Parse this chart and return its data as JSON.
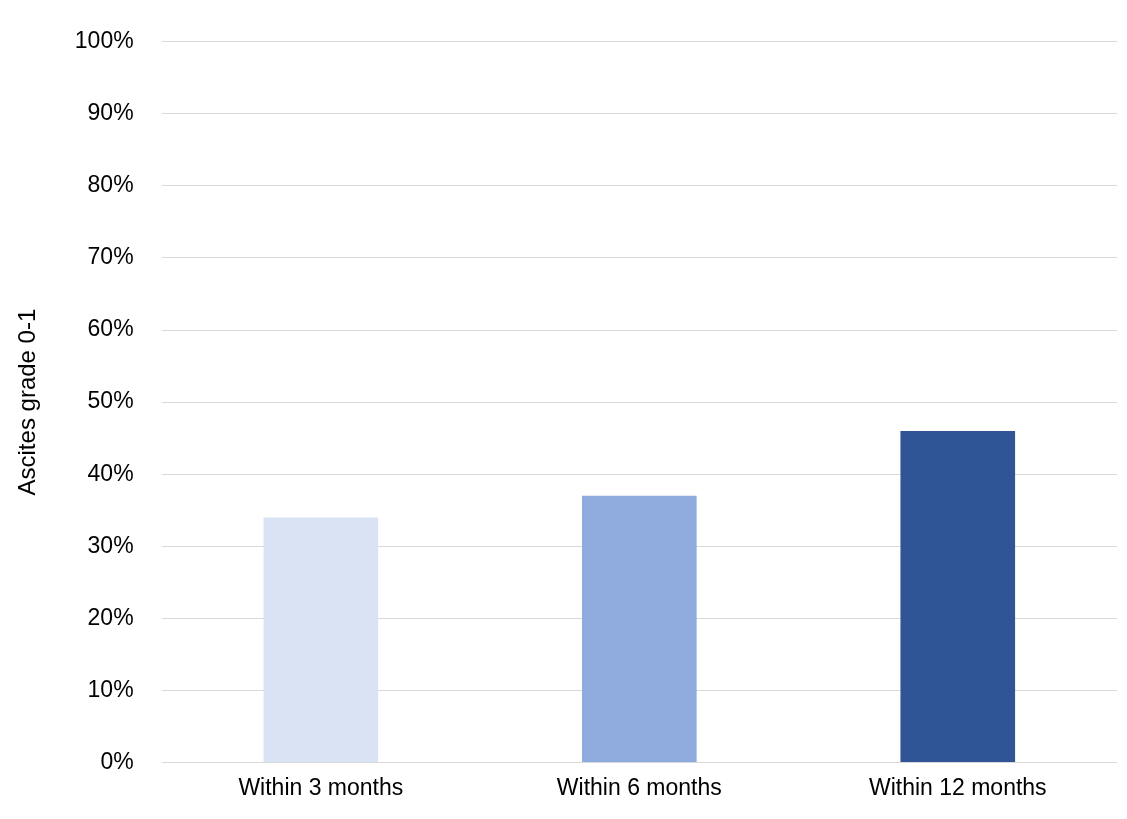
{
  "chart_data": {
    "type": "bar",
    "ylabel": "Ascites grade 0-1",
    "categories": [
      "Within 3 months",
      "Within 6 months",
      "Within 12 months"
    ],
    "values": [
      34,
      37,
      46
    ],
    "colors": [
      "#dae3f3",
      "#8faadc",
      "#2f5597"
    ],
    "ylim": [
      0,
      100
    ],
    "yticks": [
      {
        "value": 0,
        "label": "0%"
      },
      {
        "value": 10,
        "label": "10%"
      },
      {
        "value": 20,
        "label": "20%"
      },
      {
        "value": 30,
        "label": "30%"
      },
      {
        "value": 40,
        "label": "40%"
      },
      {
        "value": 50,
        "label": "50%"
      },
      {
        "value": 60,
        "label": "60%"
      },
      {
        "value": 70,
        "label": "70%"
      },
      {
        "value": 80,
        "label": "80%"
      },
      {
        "value": 90,
        "label": "90%"
      },
      {
        "value": 100,
        "label": "100%"
      }
    ],
    "grid": "y",
    "legend": false
  }
}
